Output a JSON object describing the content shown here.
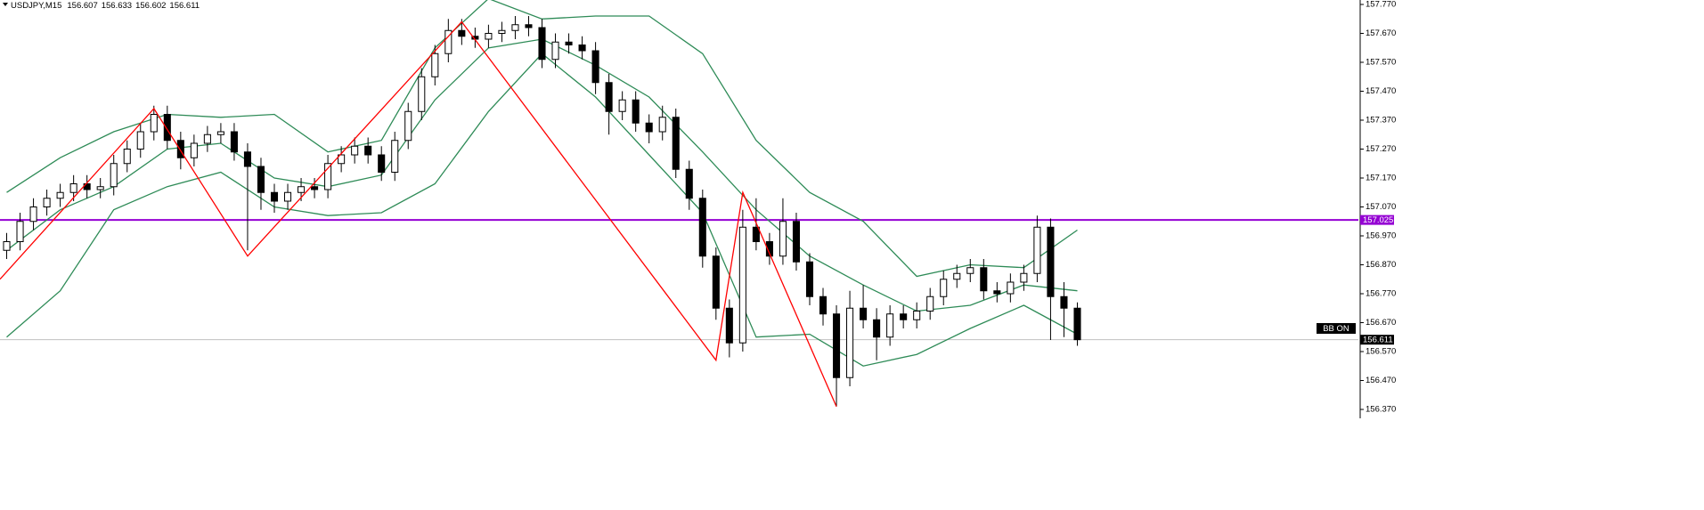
{
  "chart_data": {
    "type": "candlestick",
    "title": "USDJPY,M15",
    "quote": [
      156.607,
      156.633,
      156.602,
      156.611
    ],
    "xlim": [
      -0.5,
      101
    ],
    "ylim": [
      156.3392,
      157.7854
    ],
    "yticks": [
      {
        "value": 157.77,
        "label": "157.770"
      },
      {
        "value": 157.67,
        "label": "157.670"
      },
      {
        "value": 157.57,
        "label": "157.570"
      },
      {
        "value": 157.47,
        "label": "157.470"
      },
      {
        "value": 157.37,
        "label": "157.370"
      },
      {
        "value": 157.27,
        "label": "157.270"
      },
      {
        "value": 157.17,
        "label": "157.170"
      },
      {
        "value": 157.07,
        "label": "157.070"
      },
      {
        "value": 156.97,
        "label": "156.970"
      },
      {
        "value": 156.87,
        "label": "156.870"
      },
      {
        "value": 156.77,
        "label": "156.770"
      },
      {
        "value": 156.67,
        "label": "156.670"
      },
      {
        "value": 156.57,
        "label": "156.570"
      },
      {
        "value": 156.47,
        "label": "156.470"
      },
      {
        "value": 156.37,
        "label": "156.370"
      }
    ],
    "bull_color": "#ffffff",
    "bear_color": "#000000",
    "open": [
      156.92,
      156.95,
      157.02,
      157.07,
      157.1,
      157.12,
      157.15,
      157.13,
      157.14,
      157.22,
      157.27,
      157.33,
      157.39,
      157.3,
      157.24,
      157.29,
      157.32,
      157.33,
      157.26,
      157.21,
      157.12,
      157.09,
      157.12,
      157.14,
      157.13,
      157.22,
      157.25,
      157.28,
      157.25,
      157.19,
      157.3,
      157.4,
      157.52,
      157.6,
      157.68,
      157.66,
      157.65,
      157.67,
      157.68,
      157.7,
      157.69,
      157.58,
      157.64,
      157.63,
      157.61,
      157.5,
      157.4,
      157.44,
      157.36,
      157.33,
      157.38,
      157.2,
      157.1,
      156.9,
      156.72,
      156.6,
      157.0,
      156.95,
      156.9,
      157.02,
      156.88,
      156.76,
      156.7,
      156.48,
      156.72,
      156.68,
      156.62,
      156.7,
      156.68,
      156.71,
      156.76,
      156.82,
      156.84,
      156.86,
      156.78,
      156.77,
      156.81,
      156.84,
      157.0,
      156.76,
      156.72
    ],
    "high": [
      156.98,
      157.05,
      157.1,
      157.13,
      157.15,
      157.18,
      157.18,
      157.17,
      157.25,
      157.3,
      157.36,
      157.42,
      157.42,
      157.33,
      157.32,
      157.35,
      157.36,
      157.36,
      157.29,
      157.24,
      157.15,
      157.15,
      157.17,
      157.17,
      157.25,
      157.28,
      157.31,
      157.31,
      157.28,
      157.33,
      157.43,
      157.55,
      157.63,
      157.72,
      157.72,
      157.69,
      157.7,
      157.71,
      157.73,
      157.73,
      157.72,
      157.67,
      157.67,
      157.66,
      157.64,
      157.53,
      157.47,
      157.47,
      157.39,
      157.42,
      157.41,
      157.23,
      157.13,
      156.93,
      156.75,
      157.06,
      157.1,
      156.98,
      157.1,
      157.05,
      156.91,
      156.79,
      156.73,
      156.78,
      156.8,
      156.72,
      156.73,
      156.73,
      156.74,
      156.79,
      156.85,
      156.87,
      156.89,
      156.89,
      156.81,
      156.84,
      156.87,
      157.04,
      157.03,
      156.81,
      156.74
    ],
    "low": [
      156.89,
      156.92,
      156.99,
      157.04,
      157.07,
      157.09,
      157.1,
      157.1,
      157.11,
      157.19,
      157.24,
      157.3,
      157.27,
      157.2,
      157.21,
      157.26,
      157.29,
      157.23,
      156.92,
      157.06,
      157.05,
      157.06,
      157.09,
      157.1,
      157.1,
      157.19,
      157.22,
      157.22,
      157.16,
      157.16,
      157.27,
      157.37,
      157.49,
      157.57,
      157.63,
      157.62,
      157.62,
      157.64,
      157.65,
      157.66,
      157.55,
      157.55,
      157.6,
      157.58,
      157.46,
      157.32,
      157.37,
      157.33,
      157.29,
      157.3,
      157.17,
      157.06,
      156.86,
      156.68,
      156.55,
      156.57,
      156.92,
      156.87,
      156.87,
      156.85,
      156.73,
      156.66,
      156.38,
      156.45,
      156.65,
      156.54,
      156.59,
      156.65,
      156.65,
      156.68,
      156.73,
      156.79,
      156.81,
      156.75,
      156.74,
      156.74,
      156.78,
      156.81,
      156.61,
      156.62,
      156.59
    ],
    "close": [
      156.95,
      157.02,
      157.07,
      157.1,
      157.12,
      157.15,
      157.13,
      157.14,
      157.22,
      157.27,
      157.33,
      157.39,
      157.3,
      157.24,
      157.29,
      157.32,
      157.33,
      157.26,
      157.21,
      157.12,
      157.09,
      157.12,
      157.14,
      157.13,
      157.22,
      157.25,
      157.28,
      157.25,
      157.19,
      157.3,
      157.4,
      157.52,
      157.6,
      157.68,
      157.66,
      157.65,
      157.67,
      157.68,
      157.7,
      157.69,
      157.58,
      157.64,
      157.63,
      157.61,
      157.5,
      157.4,
      157.44,
      157.36,
      157.33,
      157.38,
      157.2,
      157.1,
      156.9,
      156.72,
      156.6,
      157.0,
      156.95,
      156.9,
      157.02,
      156.88,
      156.76,
      156.7,
      156.48,
      156.72,
      156.68,
      156.62,
      156.7,
      156.68,
      156.71,
      156.76,
      156.82,
      156.84,
      156.86,
      156.78,
      156.77,
      156.81,
      156.84,
      157.0,
      156.76,
      156.72,
      156.611
    ],
    "bands": {
      "color": "#2e8b57",
      "x": [
        0,
        4,
        8,
        12,
        16,
        20,
        24,
        28,
        32,
        36,
        40,
        44,
        48,
        52,
        56,
        60,
        64,
        68,
        72,
        76,
        80
      ],
      "upper": [
        157.12,
        157.24,
        157.33,
        157.39,
        157.38,
        157.39,
        157.26,
        157.3,
        157.62,
        157.79,
        157.72,
        157.73,
        157.73,
        157.6,
        157.3,
        157.12,
        157.02,
        156.83,
        156.87,
        156.86,
        156.99
      ],
      "middle": [
        156.92,
        157.06,
        157.14,
        157.27,
        157.29,
        157.17,
        157.14,
        157.18,
        157.44,
        157.62,
        157.65,
        157.56,
        157.45,
        157.26,
        157.06,
        156.9,
        156.8,
        156.71,
        156.73,
        156.8,
        156.78
      ],
      "lower": [
        156.62,
        156.78,
        157.06,
        157.14,
        157.19,
        157.07,
        157.04,
        157.05,
        157.15,
        157.4,
        157.6,
        157.45,
        157.25,
        157.05,
        156.62,
        156.63,
        156.52,
        156.56,
        156.65,
        156.73,
        156.63
      ]
    },
    "zigzag": {
      "color": "#ff0000",
      "x": [
        -0.5,
        11,
        18,
        34,
        53,
        55,
        62
      ],
      "values": [
        156.82,
        157.41,
        156.9,
        157.71,
        156.54,
        157.12,
        156.38
      ]
    },
    "level_line": {
      "value": 157.025,
      "color": "#9400d3"
    },
    "price_line": {
      "value": 156.611,
      "color": "#c0c0c0"
    },
    "label": "BB ON"
  }
}
